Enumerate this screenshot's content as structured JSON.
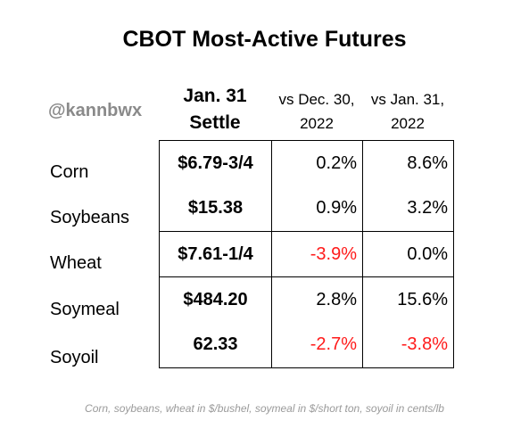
{
  "title": "CBOT Most-Active Futures",
  "handle": "@kannbwx",
  "headers": {
    "settle_line1": "Jan. 31",
    "settle_line2": "Settle",
    "dec_line1": "vs Dec. 30,",
    "dec_line2": "2022",
    "jan_line1": "vs Jan. 31,",
    "jan_line2": "2022"
  },
  "footnote": "Corn, soybeans, wheat in $/bushel, soymeal in $/short ton, soyoil in cents/lb",
  "colors": {
    "negative": "#ff1a1a",
    "handle": "#8a8a8a",
    "footnote": "#9a9a9a"
  },
  "chart_data": {
    "type": "table",
    "title": "CBOT Most-Active Futures",
    "columns": [
      "Jan. 31 Settle",
      "vs Dec. 30, 2022",
      "vs Jan. 31, 2022"
    ],
    "rows": [
      {
        "name": "Corn",
        "settle": "$6.79-3/4",
        "vs_dec": "0.2%",
        "vs_jan": "8.6%"
      },
      {
        "name": "Soybeans",
        "settle": "$15.38",
        "vs_dec": "0.9%",
        "vs_jan": "3.2%"
      },
      {
        "name": "Wheat",
        "settle": "$7.61-1/4",
        "vs_dec": "-3.9%",
        "vs_jan": "0.0%"
      },
      {
        "name": "Soymeal",
        "settle": "$484.20",
        "vs_dec": "2.8%",
        "vs_jan": "15.6%"
      },
      {
        "name": "Soyoil",
        "settle": "62.33",
        "vs_dec": "-2.7%",
        "vs_jan": "-3.8%"
      }
    ]
  }
}
